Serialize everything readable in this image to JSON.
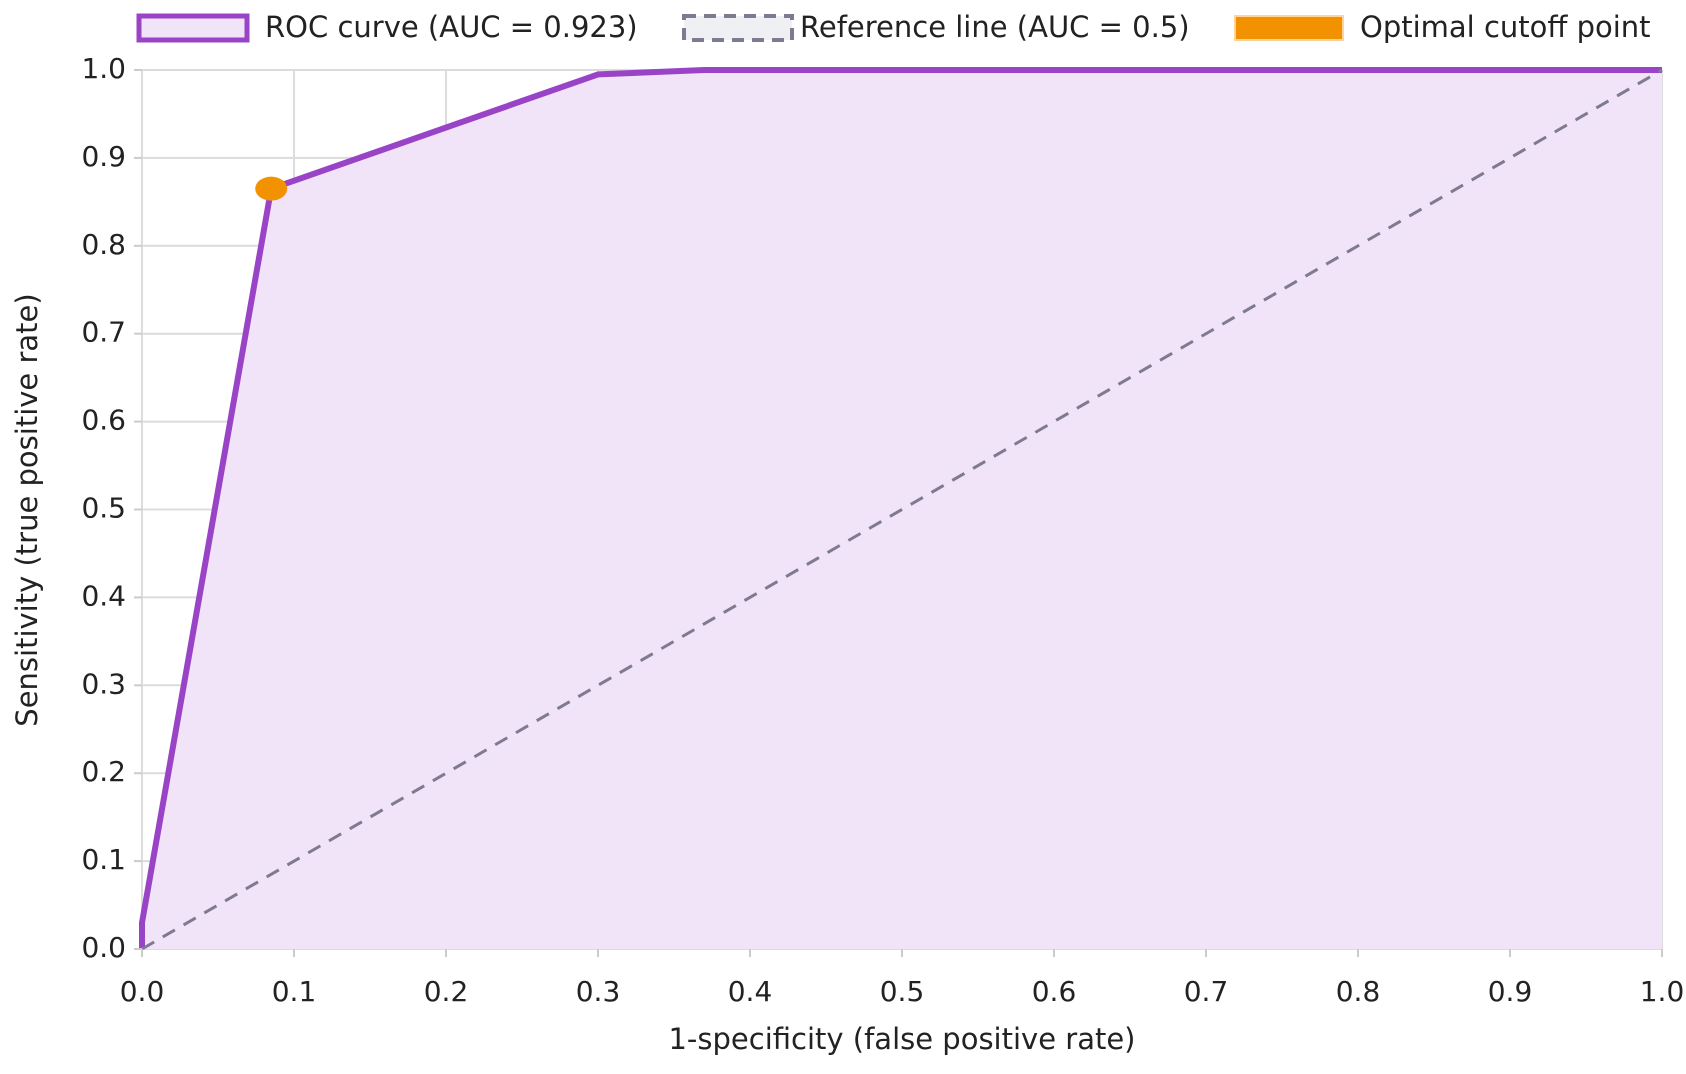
{
  "chart_data": {
    "type": "line",
    "x_label": "1-specificity (false positive rate)",
    "y_label": "Sensitivity (true positive rate)",
    "xlim": [
      0,
      1
    ],
    "ylim": [
      0,
      1
    ],
    "xticks": [
      {
        "value": 0,
        "label": "0.0"
      },
      0.1,
      0.2,
      0.3,
      0.4,
      0.5,
      0.6,
      0.7,
      0.8,
      0.9,
      {
        "value": 1,
        "label": "1.0"
      }
    ],
    "yticks": [
      {
        "value": 0,
        "label": "0.0"
      },
      0.1,
      0.2,
      0.3,
      0.4,
      0.5,
      0.6,
      0.7,
      0.8,
      0.9,
      {
        "value": 1,
        "label": "1.0"
      }
    ],
    "grid": true,
    "legend": "top",
    "series": [
      {
        "name": "ROC curve (AUC = 0.923)",
        "color": "#9944c6",
        "fill": "#f1e3f8",
        "style": "area",
        "x": [
          0,
          0,
          0.085,
          0.3,
          0.37,
          1
        ],
        "values": [
          0,
          0.03,
          0.865,
          0.995,
          1,
          1
        ]
      },
      {
        "name": "Reference line (AUC = 0.5)",
        "color": "#7e7a92",
        "style": "dashed",
        "x": [
          0,
          1
        ],
        "values": [
          0,
          1
        ]
      },
      {
        "name": "Optimal cutoff point",
        "color": "#f39200",
        "style": "point",
        "x": [
          0.085
        ],
        "values": [
          0.865
        ]
      }
    ]
  }
}
